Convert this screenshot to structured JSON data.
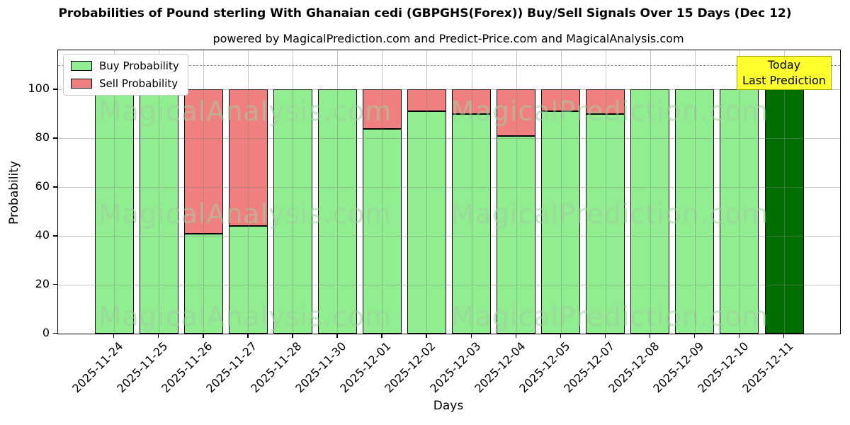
{
  "header": {
    "title": "Probabilities of Pound sterling With Ghanaian cedi (GBPGHS(Forex)) Buy/Sell Signals Over 15 Days (Dec 12)",
    "subtitle": "powered by MagicalPrediction.com and Predict-Price.com and MagicalAnalysis.com"
  },
  "legend": {
    "items": [
      {
        "label": "Buy Probability",
        "color": "#90ee90"
      },
      {
        "label": "Sell Probability",
        "color": "#f08080"
      }
    ]
  },
  "annotation": {
    "line1": "Today",
    "line2": "Last Prediction",
    "bg_color": "#ffff2e",
    "border_color": "#a6a600"
  },
  "axes": {
    "xlabel": "Days",
    "ylabel": "Probability",
    "yticks": [
      0,
      20,
      40,
      60,
      80,
      100
    ],
    "ylim": [
      0,
      116
    ],
    "dashed_line_y": 110,
    "grid": "on"
  },
  "watermarks": {
    "texts": [
      "MagicalAnalysis.com",
      "MagicalPrediction.com"
    ],
    "color": "rgba(160,205,160,0.55)"
  },
  "chart_data": {
    "type": "bar",
    "stacked": true,
    "title": "Probabilities of Pound sterling With Ghanaian cedi (GBPGHS(Forex)) Buy/Sell Signals Over 15 Days (Dec 12)",
    "xlabel": "Days",
    "ylabel": "Probability",
    "ylim": [
      0,
      116
    ],
    "legend_position": "upper-left",
    "categories": [
      "2025-11-24",
      "2025-11-25",
      "2025-11-26",
      "2025-11-27",
      "2025-11-28",
      "2025-11-30",
      "2025-12-01",
      "2025-12-02",
      "2025-12-03",
      "2025-12-04",
      "2025-12-05",
      "2025-12-07",
      "2025-12-08",
      "2025-12-09",
      "2025-12-10",
      "2025-12-11"
    ],
    "series": [
      {
        "name": "Buy Probability",
        "color": "#90ee90",
        "values": [
          100,
          100,
          41,
          44,
          100,
          100,
          84,
          91,
          90,
          81,
          91,
          90,
          100,
          100,
          100,
          100
        ]
      },
      {
        "name": "Sell Probability",
        "color": "#f08080",
        "values": [
          0,
          0,
          59,
          56,
          0,
          0,
          16,
          9,
          10,
          19,
          9,
          10,
          0,
          0,
          0,
          0
        ]
      }
    ],
    "today_bar": {
      "category": "2025-12-11",
      "index": 15,
      "color": "#006e00"
    },
    "bar_edge_color": "#000000"
  }
}
